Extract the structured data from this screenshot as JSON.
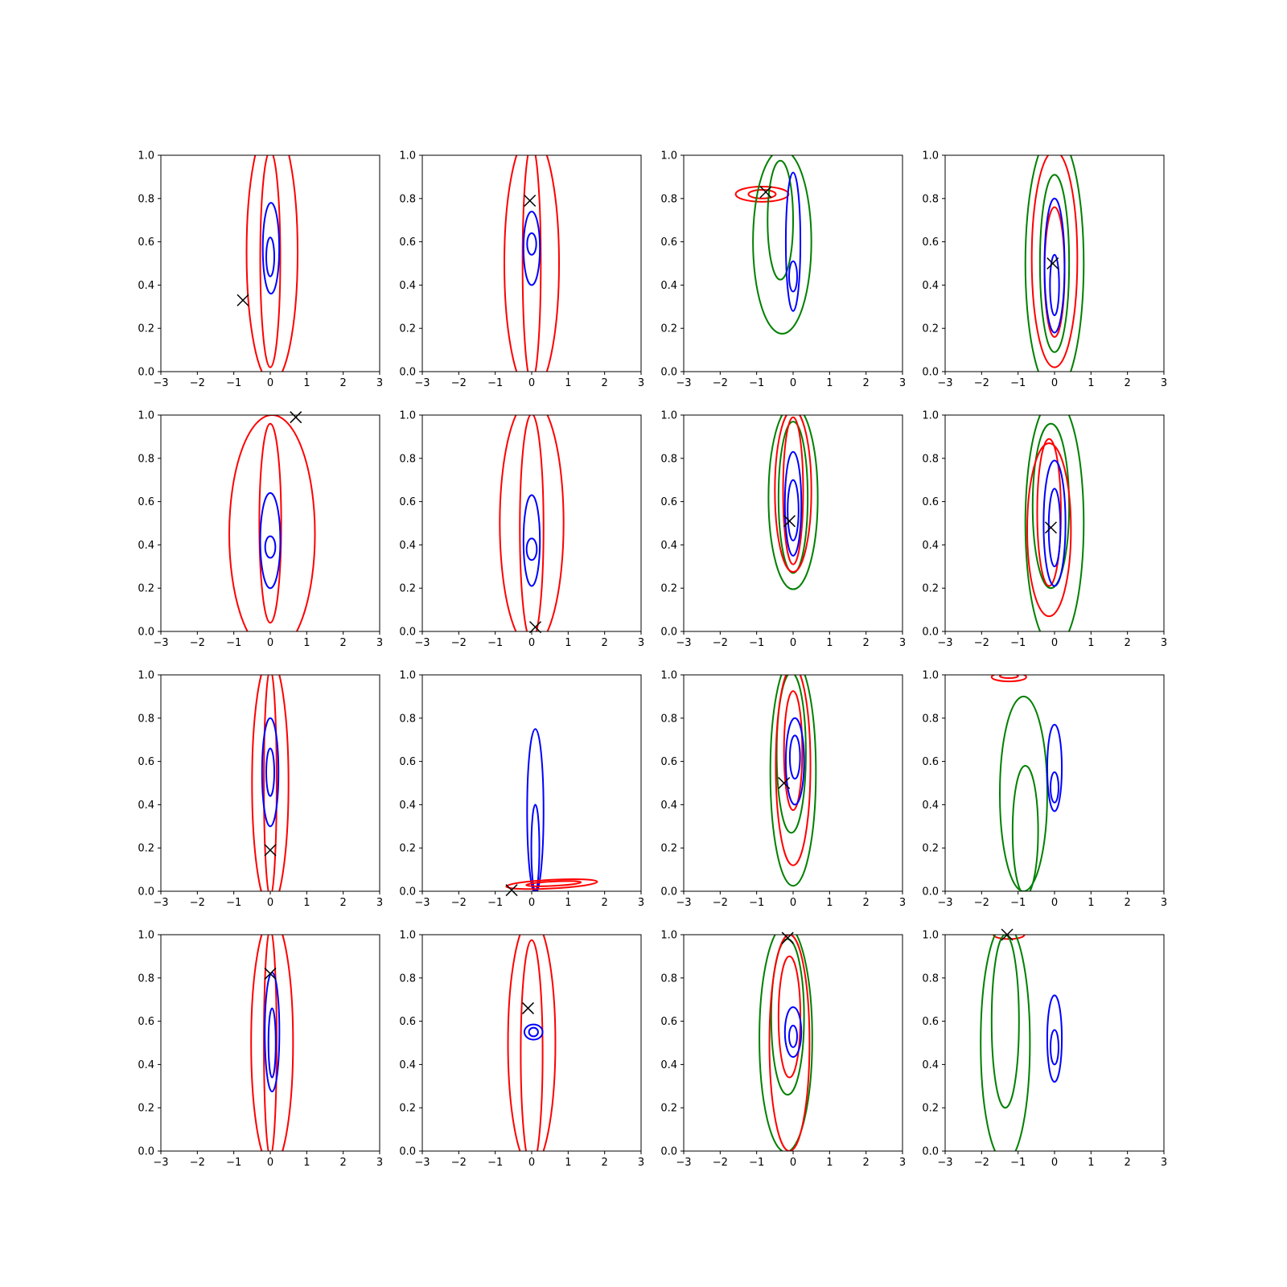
{
  "chart_data": {
    "type": "contour-grid",
    "rows": 4,
    "cols": 4,
    "xlim": [
      -3,
      3
    ],
    "ylim": [
      0,
      1
    ],
    "xticks": [
      -3,
      -2,
      -1,
      0,
      1,
      2,
      3
    ],
    "yticks": [
      0.0,
      0.2,
      0.4,
      0.6,
      0.8,
      1.0
    ],
    "xtick_labels": [
      "−3",
      "−2",
      "−1",
      "0",
      "1",
      "2",
      "3"
    ],
    "ytick_labels": [
      "0.0",
      "0.2",
      "0.4",
      "0.6",
      "0.8",
      "1.0"
    ],
    "colors": {
      "red": "#ff0000",
      "blue": "#0000ff",
      "green": "#008000",
      "marker": "#000000"
    },
    "panels": [
      {
        "marker": [
          -0.75,
          0.33
        ],
        "contours": [
          {
            "c": "red",
            "cx": 0.05,
            "cy": 0.55,
            "w": 1.4,
            "h": 1.2
          },
          {
            "c": "red",
            "cx": 0.0,
            "cy": 0.52,
            "w": 0.55,
            "h": 1.0
          },
          {
            "c": "blue",
            "cx": 0.02,
            "cy": 0.57,
            "w": 0.45,
            "h": 0.42
          },
          {
            "c": "blue",
            "cx": 0.0,
            "cy": 0.53,
            "w": 0.22,
            "h": 0.18
          }
        ]
      },
      {
        "marker": [
          -0.05,
          0.79
        ],
        "contours": [
          {
            "c": "red",
            "cx": 0.0,
            "cy": 0.5,
            "w": 1.5,
            "h": 1.2
          },
          {
            "c": "red",
            "cx": 0.0,
            "cy": 0.5,
            "w": 0.5,
            "h": 1.1
          },
          {
            "c": "blue",
            "cx": 0.0,
            "cy": 0.57,
            "w": 0.45,
            "h": 0.34
          },
          {
            "c": "blue",
            "cx": 0.0,
            "cy": 0.59,
            "w": 0.25,
            "h": 0.1
          }
        ]
      },
      {
        "marker": [
          -0.75,
          0.83
        ],
        "contours": [
          {
            "c": "red",
            "cx": -0.85,
            "cy": 0.82,
            "w": 1.45,
            "h": 0.07
          },
          {
            "c": "red",
            "cx": -0.85,
            "cy": 0.82,
            "w": 0.75,
            "h": 0.04
          },
          {
            "c": "green",
            "cx": -0.3,
            "cy": 0.6,
            "w": 1.6,
            "h": 0.85
          },
          {
            "c": "green",
            "cx": -0.35,
            "cy": 0.7,
            "w": 0.7,
            "h": 0.55
          },
          {
            "c": "blue",
            "cx": 0.0,
            "cy": 0.6,
            "w": 0.4,
            "h": 0.64
          },
          {
            "c": "blue",
            "cx": 0.0,
            "cy": 0.44,
            "w": 0.22,
            "h": 0.14
          }
        ]
      },
      {
        "marker": [
          -0.05,
          0.5
        ],
        "contours": [
          {
            "c": "green",
            "cx": 0.0,
            "cy": 0.5,
            "w": 1.6,
            "h": 1.2
          },
          {
            "c": "green",
            "cx": 0.0,
            "cy": 0.5,
            "w": 0.8,
            "h": 0.82
          },
          {
            "c": "red",
            "cx": 0.0,
            "cy": 0.52,
            "w": 1.25,
            "h": 1.0
          },
          {
            "c": "red",
            "cx": 0.0,
            "cy": 0.46,
            "w": 0.55,
            "h": 0.6
          },
          {
            "c": "blue",
            "cx": 0.0,
            "cy": 0.49,
            "w": 0.55,
            "h": 0.62
          },
          {
            "c": "blue",
            "cx": 0.0,
            "cy": 0.4,
            "w": 0.25,
            "h": 0.28
          }
        ]
      },
      {
        "marker": [
          0.7,
          0.99
        ],
        "contours": [
          {
            "c": "red",
            "cx": 0.05,
            "cy": 0.45,
            "w": 2.35,
            "h": 1.1
          },
          {
            "c": "red",
            "cx": 0.0,
            "cy": 0.5,
            "w": 0.6,
            "h": 0.92
          },
          {
            "c": "blue",
            "cx": 0.0,
            "cy": 0.42,
            "w": 0.55,
            "h": 0.44
          },
          {
            "c": "blue",
            "cx": 0.0,
            "cy": 0.39,
            "w": 0.28,
            "h": 0.1
          }
        ]
      },
      {
        "marker": [
          0.1,
          0.02
        ],
        "contours": [
          {
            "c": "red",
            "cx": 0.0,
            "cy": 0.5,
            "w": 1.75,
            "h": 1.15
          },
          {
            "c": "red",
            "cx": 0.0,
            "cy": 0.48,
            "w": 0.65,
            "h": 1.05
          },
          {
            "c": "blue",
            "cx": 0.0,
            "cy": 0.42,
            "w": 0.45,
            "h": 0.42
          },
          {
            "c": "blue",
            "cx": 0.0,
            "cy": 0.38,
            "w": 0.28,
            "h": 0.1
          }
        ]
      },
      {
        "marker": [
          -0.1,
          0.51
        ],
        "contours": [
          {
            "c": "green",
            "cx": 0.0,
            "cy": 0.62,
            "w": 1.35,
            "h": 0.85
          },
          {
            "c": "green",
            "cx": 0.0,
            "cy": 0.62,
            "w": 0.8,
            "h": 0.7
          },
          {
            "c": "red",
            "cx": 0.0,
            "cy": 0.65,
            "w": 1.0,
            "h": 0.75
          },
          {
            "c": "red",
            "cx": 0.0,
            "cy": 0.65,
            "w": 0.55,
            "h": 0.68
          },
          {
            "c": "blue",
            "cx": 0.0,
            "cy": 0.59,
            "w": 0.45,
            "h": 0.48
          },
          {
            "c": "blue",
            "cx": 0.0,
            "cy": 0.56,
            "w": 0.3,
            "h": 0.28
          }
        ]
      },
      {
        "marker": [
          -0.1,
          0.48
        ],
        "contours": [
          {
            "c": "green",
            "cx": 0.0,
            "cy": 0.5,
            "w": 1.6,
            "h": 1.15
          },
          {
            "c": "green",
            "cx": -0.1,
            "cy": 0.58,
            "w": 1.0,
            "h": 0.76
          },
          {
            "c": "red",
            "cx": -0.15,
            "cy": 0.47,
            "w": 1.2,
            "h": 0.8
          },
          {
            "c": "red",
            "cx": -0.15,
            "cy": 0.55,
            "w": 0.65,
            "h": 0.68
          },
          {
            "c": "blue",
            "cx": 0.0,
            "cy": 0.5,
            "w": 0.6,
            "h": 0.58
          },
          {
            "c": "blue",
            "cx": 0.0,
            "cy": 0.48,
            "w": 0.32,
            "h": 0.36
          }
        ]
      },
      {
        "marker": [
          0.0,
          0.19
        ],
        "contours": [
          {
            "c": "red",
            "cx": 0.0,
            "cy": 0.5,
            "w": 1.0,
            "h": 1.15
          },
          {
            "c": "red",
            "cx": 0.0,
            "cy": 0.5,
            "w": 0.35,
            "h": 1.05
          },
          {
            "c": "blue",
            "cx": 0.0,
            "cy": 0.55,
            "w": 0.45,
            "h": 0.5
          },
          {
            "c": "blue",
            "cx": 0.0,
            "cy": 0.55,
            "w": 0.22,
            "h": 0.22
          }
        ]
      },
      {
        "marker": [
          -0.55,
          0.005
        ],
        "contours": [
          {
            "c": "blue",
            "cx": 0.1,
            "cy": 0.37,
            "w": 0.45,
            "h": 0.76
          },
          {
            "c": "blue",
            "cx": 0.1,
            "cy": 0.2,
            "w": 0.22,
            "h": 0.4
          },
          {
            "c": "red",
            "cx": 0.55,
            "cy": 0.033,
            "w": 2.5,
            "h": 0.04,
            "rot": -3
          },
          {
            "c": "red",
            "cx": 0.6,
            "cy": 0.035,
            "w": 1.5,
            "h": 0.02,
            "rot": -3
          }
        ]
      },
      {
        "marker": [
          -0.25,
          0.5
        ],
        "contours": [
          {
            "c": "green",
            "cx": 0.0,
            "cy": 0.55,
            "w": 1.25,
            "h": 1.05
          },
          {
            "c": "green",
            "cx": -0.05,
            "cy": 0.64,
            "w": 0.8,
            "h": 0.74
          },
          {
            "c": "red",
            "cx": 0.0,
            "cy": 0.58,
            "w": 0.95,
            "h": 0.92
          },
          {
            "c": "red",
            "cx": 0.0,
            "cy": 0.65,
            "w": 0.5,
            "h": 0.55
          },
          {
            "c": "blue",
            "cx": 0.05,
            "cy": 0.6,
            "w": 0.5,
            "h": 0.4
          },
          {
            "c": "blue",
            "cx": 0.05,
            "cy": 0.62,
            "w": 0.28,
            "h": 0.2
          }
        ]
      },
      {
        "marker": null,
        "contours": [
          {
            "c": "red",
            "cx": -1.25,
            "cy": 0.99,
            "w": 0.95,
            "h": 0.04
          },
          {
            "c": "red",
            "cx": -1.25,
            "cy": 0.995,
            "w": 0.5,
            "h": 0.02
          },
          {
            "c": "green",
            "cx": -0.85,
            "cy": 0.45,
            "w": 1.3,
            "h": 0.9
          },
          {
            "c": "green",
            "cx": -0.8,
            "cy": 0.28,
            "w": 0.7,
            "h": 0.6
          },
          {
            "c": "blue",
            "cx": 0.0,
            "cy": 0.57,
            "w": 0.4,
            "h": 0.4
          },
          {
            "c": "blue",
            "cx": 0.0,
            "cy": 0.48,
            "w": 0.22,
            "h": 0.14
          }
        ]
      },
      {
        "marker": [
          0.0,
          0.82
        ],
        "contours": [
          {
            "c": "red",
            "cx": 0.05,
            "cy": 0.5,
            "w": 1.15,
            "h": 1.15
          },
          {
            "c": "red",
            "cx": 0.0,
            "cy": 0.5,
            "w": 0.35,
            "h": 1.05
          },
          {
            "c": "blue",
            "cx": 0.05,
            "cy": 0.55,
            "w": 0.4,
            "h": 0.55
          },
          {
            "c": "blue",
            "cx": 0.05,
            "cy": 0.5,
            "w": 0.2,
            "h": 0.32
          }
        ]
      },
      {
        "marker": [
          -0.1,
          0.66
        ],
        "contours": [
          {
            "c": "red",
            "cx": 0.0,
            "cy": 0.5,
            "w": 1.3,
            "h": 1.15
          },
          {
            "c": "red",
            "cx": 0.0,
            "cy": 0.45,
            "w": 0.6,
            "h": 1.05
          },
          {
            "c": "blue",
            "cx": 0.05,
            "cy": 0.55,
            "w": 0.5,
            "h": 0.07
          },
          {
            "c": "blue",
            "cx": 0.05,
            "cy": 0.55,
            "w": 0.25,
            "h": 0.04
          }
        ]
      },
      {
        "marker": [
          -0.15,
          0.985
        ],
        "contours": [
          {
            "c": "green",
            "cx": -0.2,
            "cy": 0.52,
            "w": 1.45,
            "h": 1.05
          },
          {
            "c": "green",
            "cx": -0.15,
            "cy": 0.62,
            "w": 0.9,
            "h": 0.72
          },
          {
            "c": "red",
            "cx": -0.1,
            "cy": 0.5,
            "w": 1.1,
            "h": 1.0
          },
          {
            "c": "red",
            "cx": -0.1,
            "cy": 0.62,
            "w": 0.6,
            "h": 0.56
          },
          {
            "c": "blue",
            "cx": 0.0,
            "cy": 0.55,
            "w": 0.45,
            "h": 0.23
          },
          {
            "c": "blue",
            "cx": 0.0,
            "cy": 0.53,
            "w": 0.22,
            "h": 0.1
          }
        ]
      },
      {
        "marker": [
          -1.3,
          1.0
        ],
        "contours": [
          {
            "c": "red",
            "cx": -1.25,
            "cy": 1.0,
            "w": 0.85,
            "h": 0.04
          },
          {
            "c": "green",
            "cx": -1.35,
            "cy": 0.5,
            "w": 1.35,
            "h": 1.1
          },
          {
            "c": "green",
            "cx": -1.35,
            "cy": 0.6,
            "w": 0.75,
            "h": 0.8
          },
          {
            "c": "blue",
            "cx": 0.0,
            "cy": 0.52,
            "w": 0.4,
            "h": 0.4
          },
          {
            "c": "blue",
            "cx": 0.0,
            "cy": 0.48,
            "w": 0.22,
            "h": 0.16
          }
        ]
      }
    ]
  }
}
